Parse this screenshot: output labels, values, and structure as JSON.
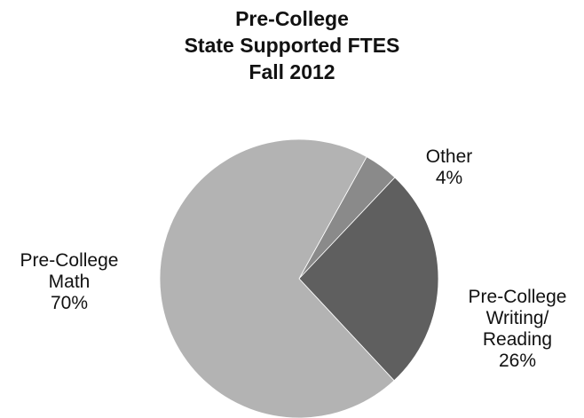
{
  "chart_data": {
    "type": "pie",
    "title": [
      "Pre-College",
      "State Supported FTES",
      "Fall 2012"
    ],
    "slices": [
      {
        "label": [
          "Pre-College",
          "Math"
        ],
        "value": 70,
        "value_label": "70%",
        "color": "#b3b3b3"
      },
      {
        "label": [
          "Other"
        ],
        "value": 4,
        "value_label": "4%",
        "color": "#8a8a8a"
      },
      {
        "label": [
          "Pre-College",
          "Writing/",
          "Reading"
        ],
        "value": 26,
        "value_label": "26%",
        "color": "#5f5f5f"
      }
    ]
  }
}
